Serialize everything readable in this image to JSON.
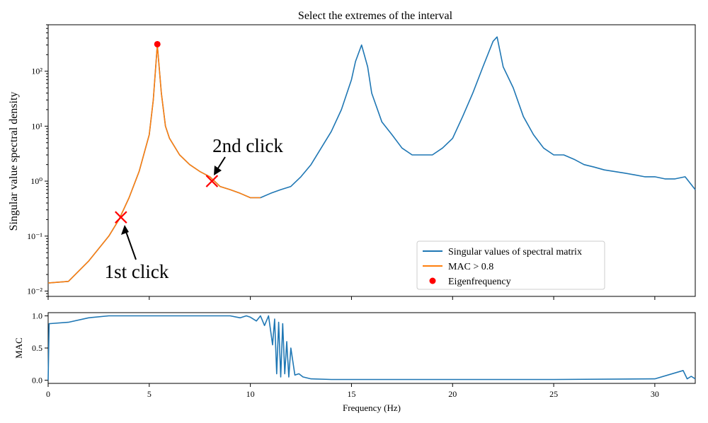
{
  "title": "Select the extremes of the interval",
  "top_panel": {
    "ylabel": "Singular value spectral density",
    "yticks": [
      "10⁻²",
      "10⁻¹",
      "10⁰",
      "10¹",
      "10²"
    ],
    "legend": {
      "svd": "Singular values of spectral matrix",
      "mac": "MAC > 0.8",
      "eig": "Eigenfrequency"
    },
    "annotations": {
      "first": "1st click",
      "second": "2nd click"
    }
  },
  "bottom_panel": {
    "ylabel": "MAC",
    "yticks": [
      "0.0",
      "0.5",
      "1.0"
    ],
    "xlabel": "Frequency  (Hz)",
    "xticks": [
      "0",
      "5",
      "10",
      "15",
      "20",
      "25",
      "30"
    ]
  },
  "colors": {
    "svd": "#1f77b4",
    "mac": "#ff7f0e",
    "eig": "#ff0000",
    "click": "#ff0000"
  },
  "chart_data": [
    {
      "type": "line",
      "yscale": "log",
      "xlim": [
        0,
        32
      ],
      "ylim": [
        0.008,
        700
      ],
      "series": [
        {
          "name": "Singular values of spectral matrix",
          "x": [
            0,
            1,
            2,
            3,
            3.5,
            4,
            4.5,
            5,
            5.2,
            5.4,
            5.6,
            5.8,
            6,
            6.5,
            7,
            7.5,
            8,
            8.5,
            9,
            9.5,
            10,
            10.5,
            11,
            11.5,
            12,
            12.5,
            13,
            13.5,
            14,
            14.5,
            15,
            15.2,
            15.5,
            15.8,
            16,
            16.5,
            17,
            17.5,
            18,
            18.5,
            19,
            19.5,
            20,
            20.5,
            21,
            21.5,
            22,
            22.2,
            22.5,
            23,
            23.5,
            24,
            24.5,
            25,
            25.5,
            26,
            26.5,
            27,
            27.5,
            28,
            28.5,
            29,
            29.5,
            30,
            30.5,
            31,
            31.5,
            32
          ],
          "y": [
            0.014,
            0.015,
            0.035,
            0.1,
            0.2,
            0.5,
            1.5,
            7,
            30,
            300,
            40,
            10,
            6,
            3,
            2,
            1.5,
            1.2,
            0.8,
            0.7,
            0.6,
            0.5,
            0.5,
            0.6,
            0.7,
            0.8,
            1.2,
            2,
            4,
            8,
            20,
            70,
            150,
            300,
            120,
            40,
            12,
            7,
            4,
            3,
            3,
            3,
            4,
            6,
            15,
            40,
            120,
            350,
            420,
            120,
            50,
            15,
            7,
            4,
            3,
            3,
            2.5,
            2,
            1.8,
            1.6,
            1.5,
            1.4,
            1.3,
            1.2,
            1.2,
            1.1,
            1.1,
            1.2,
            0.7
          ]
        },
        {
          "name": "MAC > 0.8",
          "x": [
            0,
            1,
            2,
            3,
            3.5,
            4,
            4.5,
            5,
            5.2,
            5.4,
            5.6,
            5.8,
            6,
            6.5,
            7,
            7.5,
            8,
            8.5,
            9,
            9.5,
            10,
            10.5
          ],
          "y": [
            0.014,
            0.015,
            0.035,
            0.1,
            0.2,
            0.5,
            1.5,
            7,
            30,
            300,
            40,
            10,
            6,
            3,
            2,
            1.5,
            1.2,
            0.8,
            0.7,
            0.6,
            0.5,
            0.5
          ]
        },
        {
          "name": "Eigenfrequency",
          "x": [
            5.4
          ],
          "y": [
            310
          ]
        }
      ],
      "click_markers": [
        {
          "x": 3.6,
          "y": 0.22
        },
        {
          "x": 8.1,
          "y": 1.0
        }
      ],
      "annotations": [
        {
          "text": "1st click",
          "x": 3.6,
          "y": 0.22
        },
        {
          "text": "2nd click",
          "x": 8.1,
          "y": 1.0
        }
      ],
      "legend_position": "lower-right"
    },
    {
      "type": "line",
      "xlim": [
        0,
        32
      ],
      "ylim": [
        -0.05,
        1.05
      ],
      "xlabel": "Frequency  (Hz)",
      "ylabel": "MAC",
      "series": [
        {
          "name": "MAC",
          "x": [
            0,
            0.05,
            0.1,
            1,
            2,
            3,
            5,
            7,
            9,
            9.5,
            9.8,
            10,
            10.3,
            10.5,
            10.7,
            10.9,
            11.1,
            11.2,
            11.3,
            11.4,
            11.5,
            11.6,
            11.7,
            11.8,
            11.9,
            12,
            12.2,
            12.4,
            12.6,
            13,
            14,
            16,
            20,
            25,
            30,
            31.4,
            31.6,
            31.8,
            32
          ],
          "y": [
            0.0,
            0.88,
            0.88,
            0.9,
            0.97,
            1.0,
            1.0,
            1.0,
            1.0,
            0.97,
            1.0,
            0.98,
            0.92,
            1.0,
            0.85,
            1.0,
            0.55,
            0.95,
            0.1,
            0.9,
            0.05,
            0.88,
            0.1,
            0.6,
            0.05,
            0.5,
            0.08,
            0.1,
            0.05,
            0.02,
            0.01,
            0.01,
            0.01,
            0.01,
            0.02,
            0.15,
            0.02,
            0.06,
            0.02
          ]
        }
      ]
    }
  ]
}
